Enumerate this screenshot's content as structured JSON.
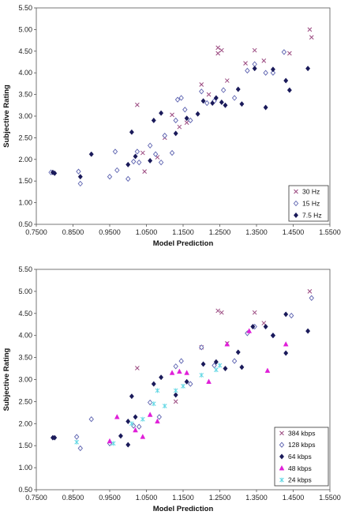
{
  "chart_data": [
    {
      "type": "scatter",
      "xlabel": "Model Prediction",
      "ylabel": "Subjective Rating",
      "xlim": [
        0.75,
        1.55
      ],
      "ylim": [
        0.5,
        5.5
      ],
      "xticks": [
        "0.7500",
        "0.8500",
        "0.9500",
        "1.0500",
        "1.1500",
        "1.2500",
        "1.3500",
        "1.4500",
        "1.5500"
      ],
      "yticks": [
        "0.50",
        "1.00",
        "1.50",
        "2.00",
        "2.50",
        "3.00",
        "3.50",
        "4.00",
        "4.50",
        "5.00",
        "5.50"
      ],
      "grid": false,
      "legend": "bottom-right",
      "series": [
        {
          "name": "30 Hz",
          "marker": "x",
          "color": "#9b4a80",
          "points": [
            [
              1.025,
              3.26
            ],
            [
              1.04,
              2.15
            ],
            [
              1.045,
              1.72
            ],
            [
              1.08,
              2.05
            ],
            [
              1.1,
              2.5
            ],
            [
              1.12,
              3.03
            ],
            [
              1.14,
              2.75
            ],
            [
              1.16,
              2.85
            ],
            [
              1.2,
              3.73
            ],
            [
              1.22,
              3.5
            ],
            [
              1.245,
              4.45
            ],
            [
              1.245,
              4.58
            ],
            [
              1.255,
              4.52
            ],
            [
              1.27,
              3.82
            ],
            [
              1.32,
              4.22
            ],
            [
              1.345,
              4.52
            ],
            [
              1.37,
              4.28
            ],
            [
              1.44,
              4.45
            ],
            [
              1.495,
              5.0
            ],
            [
              1.5,
              4.82
            ]
          ]
        },
        {
          "name": "15 Hz",
          "marker": "diamond-open",
          "color": "#5d63b0",
          "points": [
            [
              0.79,
              1.7
            ],
            [
              0.865,
              1.72
            ],
            [
              0.87,
              1.44
            ],
            [
              0.95,
              1.6
            ],
            [
              0.965,
              2.18
            ],
            [
              0.97,
              1.75
            ],
            [
              1.0,
              1.55
            ],
            [
              1.015,
              1.95
            ],
            [
              1.025,
              2.18
            ],
            [
              1.03,
              1.93
            ],
            [
              1.06,
              2.32
            ],
            [
              1.075,
              2.12
            ],
            [
              1.09,
              1.93
            ],
            [
              1.1,
              2.55
            ],
            [
              1.12,
              2.15
            ],
            [
              1.13,
              2.9
            ],
            [
              1.135,
              3.38
            ],
            [
              1.145,
              3.42
            ],
            [
              1.155,
              3.15
            ],
            [
              1.17,
              2.9
            ],
            [
              1.2,
              3.57
            ],
            [
              1.215,
              3.3
            ],
            [
              1.235,
              3.35
            ],
            [
              1.26,
              3.6
            ],
            [
              1.29,
              3.42
            ],
            [
              1.325,
              4.05
            ],
            [
              1.345,
              4.2
            ],
            [
              1.375,
              4.0
            ],
            [
              1.395,
              4.0
            ],
            [
              1.425,
              4.48
            ]
          ]
        },
        {
          "name": "7.5 Hz",
          "marker": "diamond-filled",
          "color": "#1a1a5a",
          "points": [
            [
              0.795,
              1.7
            ],
            [
              0.8,
              1.68
            ],
            [
              0.87,
              1.6
            ],
            [
              0.9,
              2.12
            ],
            [
              1.0,
              1.88
            ],
            [
              1.01,
              2.63
            ],
            [
              1.02,
              2.07
            ],
            [
              1.06,
              1.97
            ],
            [
              1.07,
              2.9
            ],
            [
              1.09,
              3.07
            ],
            [
              1.13,
              2.6
            ],
            [
              1.16,
              2.95
            ],
            [
              1.19,
              3.05
            ],
            [
              1.205,
              3.35
            ],
            [
              1.23,
              3.3
            ],
            [
              1.24,
              3.42
            ],
            [
              1.255,
              3.32
            ],
            [
              1.265,
              3.25
            ],
            [
              1.3,
              3.62
            ],
            [
              1.31,
              3.28
            ],
            [
              1.345,
              4.1
            ],
            [
              1.375,
              3.2
            ],
            [
              1.395,
              4.08
            ],
            [
              1.43,
              3.82
            ],
            [
              1.44,
              3.6
            ],
            [
              1.49,
              4.1
            ]
          ]
        }
      ]
    },
    {
      "type": "scatter",
      "xlabel": "Model Prediction",
      "ylabel": "Subjective Rating",
      "xlim": [
        0.75,
        1.55
      ],
      "ylim": [
        0.5,
        5.5
      ],
      "xticks": [
        "0.7500",
        "0.8500",
        "0.9500",
        "1.0500",
        "1.1500",
        "1.2500",
        "1.3500",
        "1.4500",
        "1.5500"
      ],
      "yticks": [
        "0.50",
        "1.00",
        "1.50",
        "2.00",
        "2.50",
        "3.00",
        "3.50",
        "4.00",
        "4.50",
        "5.00",
        "5.50"
      ],
      "grid": false,
      "legend": "bottom-right",
      "series": [
        {
          "name": "384 kbps",
          "marker": "x",
          "color": "#9b4a80",
          "points": [
            [
              1.025,
              3.26
            ],
            [
              1.13,
              2.5
            ],
            [
              1.2,
              3.73
            ],
            [
              1.245,
              4.56
            ],
            [
              1.255,
              4.52
            ],
            [
              1.27,
              3.82
            ],
            [
              1.345,
              4.52
            ],
            [
              1.37,
              4.28
            ],
            [
              1.495,
              5.0
            ]
          ]
        },
        {
          "name": "128 kbps",
          "marker": "diamond-open",
          "color": "#5d63b0",
          "points": [
            [
              0.86,
              1.7
            ],
            [
              0.87,
              1.44
            ],
            [
              0.9,
              2.1
            ],
            [
              0.95,
              1.55
            ],
            [
              1.015,
              1.95
            ],
            [
              1.03,
              1.93
            ],
            [
              1.06,
              2.48
            ],
            [
              1.085,
              2.15
            ],
            [
              1.13,
              3.3
            ],
            [
              1.145,
              3.42
            ],
            [
              1.17,
              2.9
            ],
            [
              1.2,
              3.73
            ],
            [
              1.235,
              3.32
            ],
            [
              1.29,
              3.42
            ],
            [
              1.325,
              4.05
            ],
            [
              1.345,
              4.2
            ],
            [
              1.395,
              4.0
            ],
            [
              1.445,
              4.45
            ],
            [
              1.5,
              4.85
            ]
          ]
        },
        {
          "name": "64 kbps",
          "marker": "diamond-filled",
          "color": "#1a1a5a",
          "points": [
            [
              0.795,
              1.68
            ],
            [
              0.8,
              1.68
            ],
            [
              0.98,
              1.72
            ],
            [
              1.0,
              1.52
            ],
            [
              1.0,
              2.05
            ],
            [
              1.01,
              2.62
            ],
            [
              1.02,
              2.15
            ],
            [
              1.07,
              2.9
            ],
            [
              1.09,
              3.05
            ],
            [
              1.13,
              2.65
            ],
            [
              1.16,
              2.95
            ],
            [
              1.205,
              3.35
            ],
            [
              1.24,
              3.4
            ],
            [
              1.265,
              3.25
            ],
            [
              1.3,
              3.62
            ],
            [
              1.31,
              3.28
            ],
            [
              1.34,
              4.2
            ],
            [
              1.375,
              4.2
            ],
            [
              1.395,
              4.0
            ],
            [
              1.43,
              4.48
            ],
            [
              1.43,
              3.6
            ],
            [
              1.49,
              4.1
            ]
          ]
        },
        {
          "name": "48 kbps",
          "marker": "triangle",
          "color": "#e01fd8",
          "points": [
            [
              0.95,
              1.6
            ],
            [
              0.97,
              2.15
            ],
            [
              1.02,
              1.85
            ],
            [
              1.04,
              1.7
            ],
            [
              1.06,
              2.2
            ],
            [
              1.08,
              2.05
            ],
            [
              1.12,
              3.15
            ],
            [
              1.14,
              3.18
            ],
            [
              1.16,
              3.15
            ],
            [
              1.22,
              2.95
            ],
            [
              1.27,
              3.8
            ],
            [
              1.33,
              4.1
            ],
            [
              1.38,
              3.2
            ],
            [
              1.43,
              3.8
            ]
          ]
        },
        {
          "name": "24 kbps",
          "marker": "asterisk",
          "color": "#62d7e4",
          "points": [
            [
              0.86,
              1.58
            ],
            [
              0.96,
              1.55
            ],
            [
              1.01,
              2.0
            ],
            [
              1.04,
              2.1
            ],
            [
              1.07,
              2.45
            ],
            [
              1.08,
              2.75
            ],
            [
              1.1,
              2.4
            ],
            [
              1.13,
              2.75
            ],
            [
              1.15,
              2.85
            ],
            [
              1.2,
              3.1
            ],
            [
              1.24,
              3.22
            ],
            [
              1.25,
              3.32
            ]
          ]
        }
      ]
    }
  ]
}
